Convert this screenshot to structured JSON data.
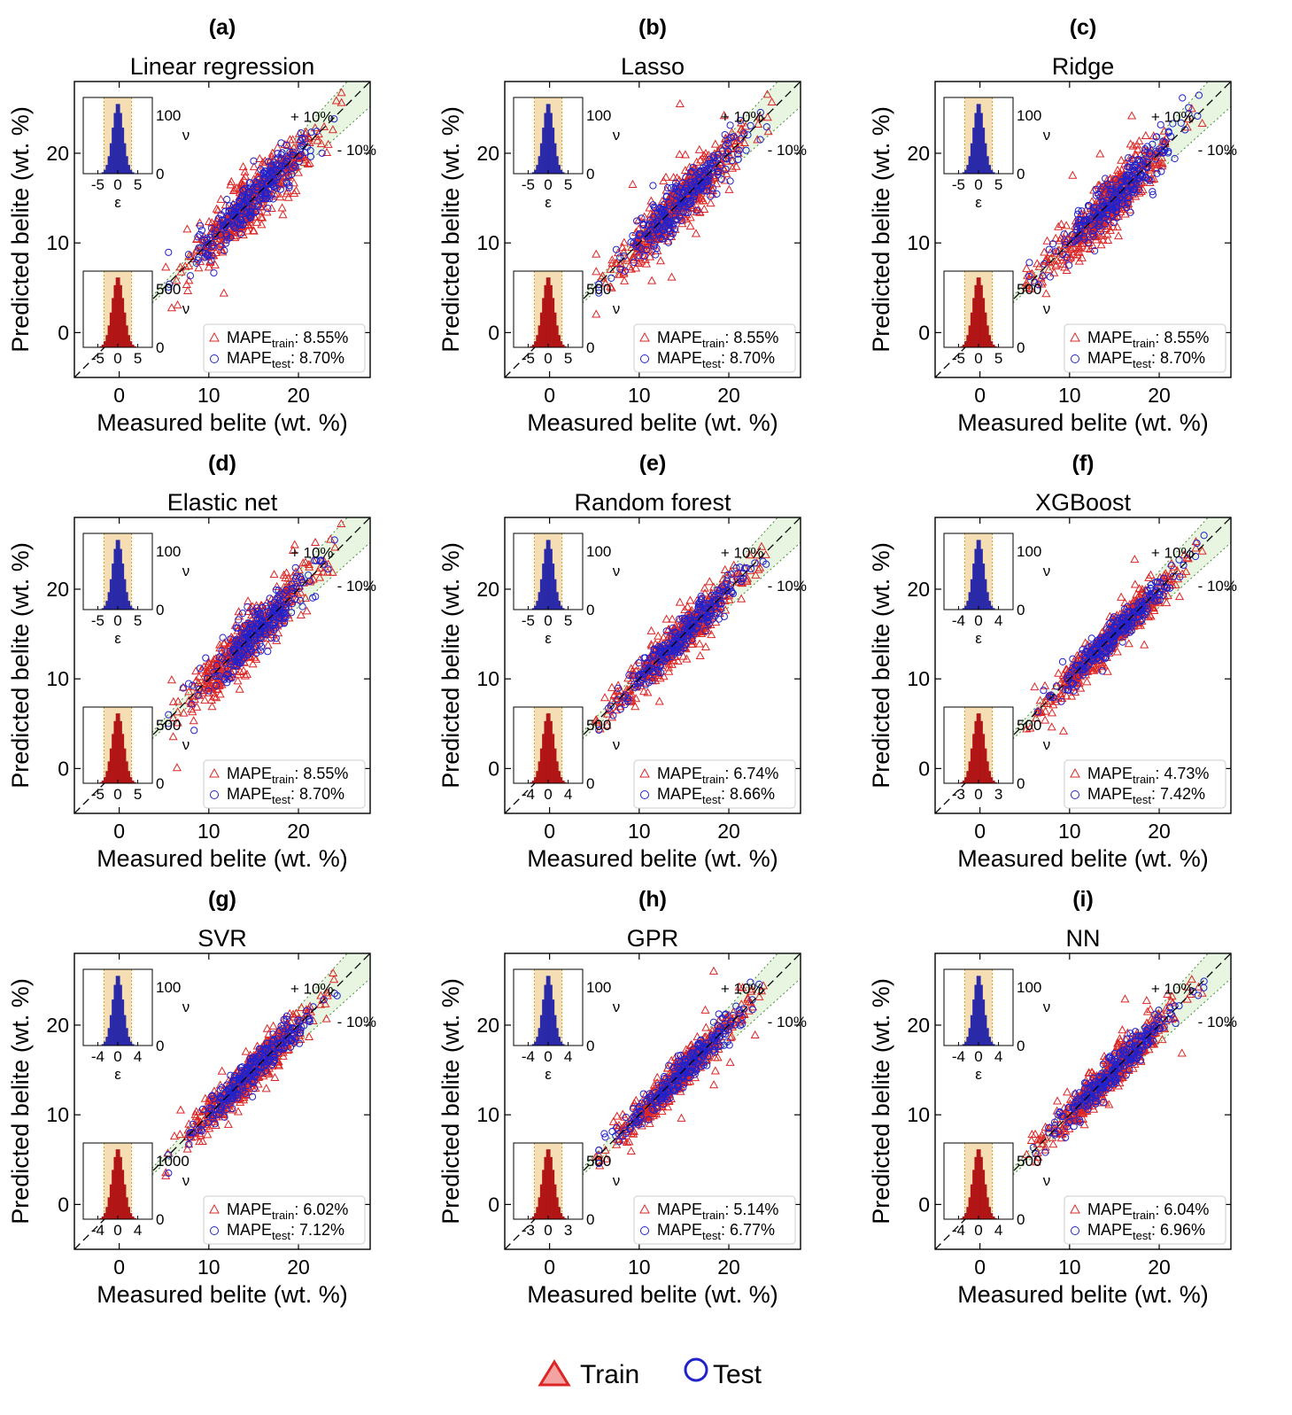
{
  "common": {
    "xlabel": "Measured belite (wt. %)",
    "ylabel": "Predicted belite (wt. %)",
    "inset_xlabel": "ε",
    "band_plus_label": "+ 10%",
    "band_minus_label": "- 10%",
    "mape_name": "MAPE",
    "mape_train_sub": "train",
    "mape_test_sub": "test"
  },
  "legend": {
    "train": "Train",
    "test": "Test"
  },
  "colors": {
    "train": "#dc2626",
    "test": "#2222cc",
    "train_hist": "#b11515",
    "test_hist": "#2a2aa8",
    "band": "#f5deb3",
    "ten_pct": "#e8f5e1"
  },
  "chart_data": [
    {
      "panel": "(a)",
      "title": "Linear regression",
      "type": "scatter",
      "xlim": [
        -5,
        28
      ],
      "ylim": [
        -5,
        28
      ],
      "xticks": [
        0,
        10,
        20
      ],
      "yticks": [
        0,
        10,
        20
      ],
      "spread": 1.45,
      "mape_train": "8.55%",
      "mape_test": "8.70%",
      "test_hist": {
        "xticks": [
          -5,
          0,
          5
        ],
        "yticks": [
          0,
          100
        ]
      },
      "train_hist": {
        "xticks": [
          -5,
          0,
          5
        ],
        "yticks": [
          0,
          500
        ]
      }
    },
    {
      "panel": "(b)",
      "title": "Lasso",
      "type": "scatter",
      "xlim": [
        -5,
        28
      ],
      "ylim": [
        -5,
        28
      ],
      "xticks": [
        0,
        10,
        20
      ],
      "yticks": [
        0,
        10,
        20
      ],
      "spread": 1.45,
      "mape_train": "8.55%",
      "mape_test": "8.70%",
      "test_hist": {
        "xticks": [
          -5,
          0,
          5
        ],
        "yticks": [
          0,
          100
        ]
      },
      "train_hist": {
        "xticks": [
          -5,
          0,
          5
        ],
        "yticks": [
          0,
          500
        ]
      }
    },
    {
      "panel": "(c)",
      "title": "Ridge",
      "type": "scatter",
      "xlim": [
        -5,
        28
      ],
      "ylim": [
        -5,
        28
      ],
      "xticks": [
        0,
        10,
        20
      ],
      "yticks": [
        0,
        10,
        20
      ],
      "spread": 1.45,
      "mape_train": "8.55%",
      "mape_test": "8.70%",
      "test_hist": {
        "xticks": [
          -5,
          0,
          5
        ],
        "yticks": [
          0,
          100
        ]
      },
      "train_hist": {
        "xticks": [
          -5,
          0,
          5
        ],
        "yticks": [
          0,
          500
        ]
      }
    },
    {
      "panel": "(d)",
      "title": "Elastic net",
      "type": "scatter",
      "xlim": [
        -5,
        28
      ],
      "ylim": [
        -5,
        28
      ],
      "xticks": [
        0,
        10,
        20
      ],
      "yticks": [
        0,
        10,
        20
      ],
      "spread": 1.45,
      "mape_train": "8.55%",
      "mape_test": "8.70%",
      "test_hist": {
        "xticks": [
          -5,
          0,
          5
        ],
        "yticks": [
          0,
          100
        ]
      },
      "train_hist": {
        "xticks": [
          -5,
          0,
          5
        ],
        "yticks": [
          0,
          500
        ]
      }
    },
    {
      "panel": "(e)",
      "title": "Random forest",
      "type": "scatter",
      "xlim": [
        -5,
        28
      ],
      "ylim": [
        -5,
        28
      ],
      "xticks": [
        0,
        10,
        20
      ],
      "yticks": [
        0,
        10,
        20
      ],
      "spread": 1.1,
      "mape_train": "6.74%",
      "mape_test": "8.66%",
      "test_hist": {
        "xticks": [
          -5,
          0,
          5
        ],
        "yticks": [
          0,
          100
        ]
      },
      "train_hist": {
        "xticks": [
          -4,
          0,
          4
        ],
        "yticks": [
          0,
          500
        ]
      }
    },
    {
      "panel": "(f)",
      "title": "XGBoost",
      "type": "scatter",
      "xlim": [
        -5,
        28
      ],
      "ylim": [
        -5,
        28
      ],
      "xticks": [
        0,
        10,
        20
      ],
      "yticks": [
        0,
        10,
        20
      ],
      "spread": 0.95,
      "mape_train": "4.73%",
      "mape_test": "7.42%",
      "test_hist": {
        "xticks": [
          -4,
          0,
          4
        ],
        "yticks": [
          0,
          100
        ]
      },
      "train_hist": {
        "xticks": [
          -3,
          0,
          3
        ],
        "yticks": [
          0,
          500
        ]
      }
    },
    {
      "panel": "(g)",
      "title": "SVR",
      "type": "scatter",
      "xlim": [
        -5,
        28
      ],
      "ylim": [
        -5,
        28
      ],
      "xticks": [
        0,
        10,
        20
      ],
      "yticks": [
        0,
        10,
        20
      ],
      "spread": 1.05,
      "mape_train": "6.02%",
      "mape_test": "7.12%",
      "test_hist": {
        "xticks": [
          -4,
          0,
          4
        ],
        "yticks": [
          0,
          100
        ]
      },
      "train_hist": {
        "xticks": [
          -4,
          0,
          4
        ],
        "yticks": [
          0,
          1000
        ]
      }
    },
    {
      "panel": "(h)",
      "title": "GPR",
      "type": "scatter",
      "xlim": [
        -5,
        28
      ],
      "ylim": [
        -5,
        28
      ],
      "xticks": [
        0,
        10,
        20
      ],
      "yticks": [
        0,
        10,
        20
      ],
      "spread": 0.95,
      "mape_train": "5.14%",
      "mape_test": "6.77%",
      "test_hist": {
        "xticks": [
          -4,
          0,
          4
        ],
        "yticks": [
          0,
          100
        ]
      },
      "train_hist": {
        "xticks": [
          -3,
          0,
          3
        ],
        "yticks": [
          0,
          500
        ]
      }
    },
    {
      "panel": "(i)",
      "title": "NN",
      "type": "scatter",
      "xlim": [
        -5,
        28
      ],
      "ylim": [
        -5,
        28
      ],
      "xticks": [
        0,
        10,
        20
      ],
      "yticks": [
        0,
        10,
        20
      ],
      "spread": 1.0,
      "mape_train": "6.04%",
      "mape_test": "6.96%",
      "test_hist": {
        "xticks": [
          -4,
          0,
          4
        ],
        "yticks": [
          0,
          100
        ]
      },
      "train_hist": {
        "xticks": [
          -4,
          0,
          4
        ],
        "yticks": [
          0,
          500
        ]
      }
    }
  ]
}
